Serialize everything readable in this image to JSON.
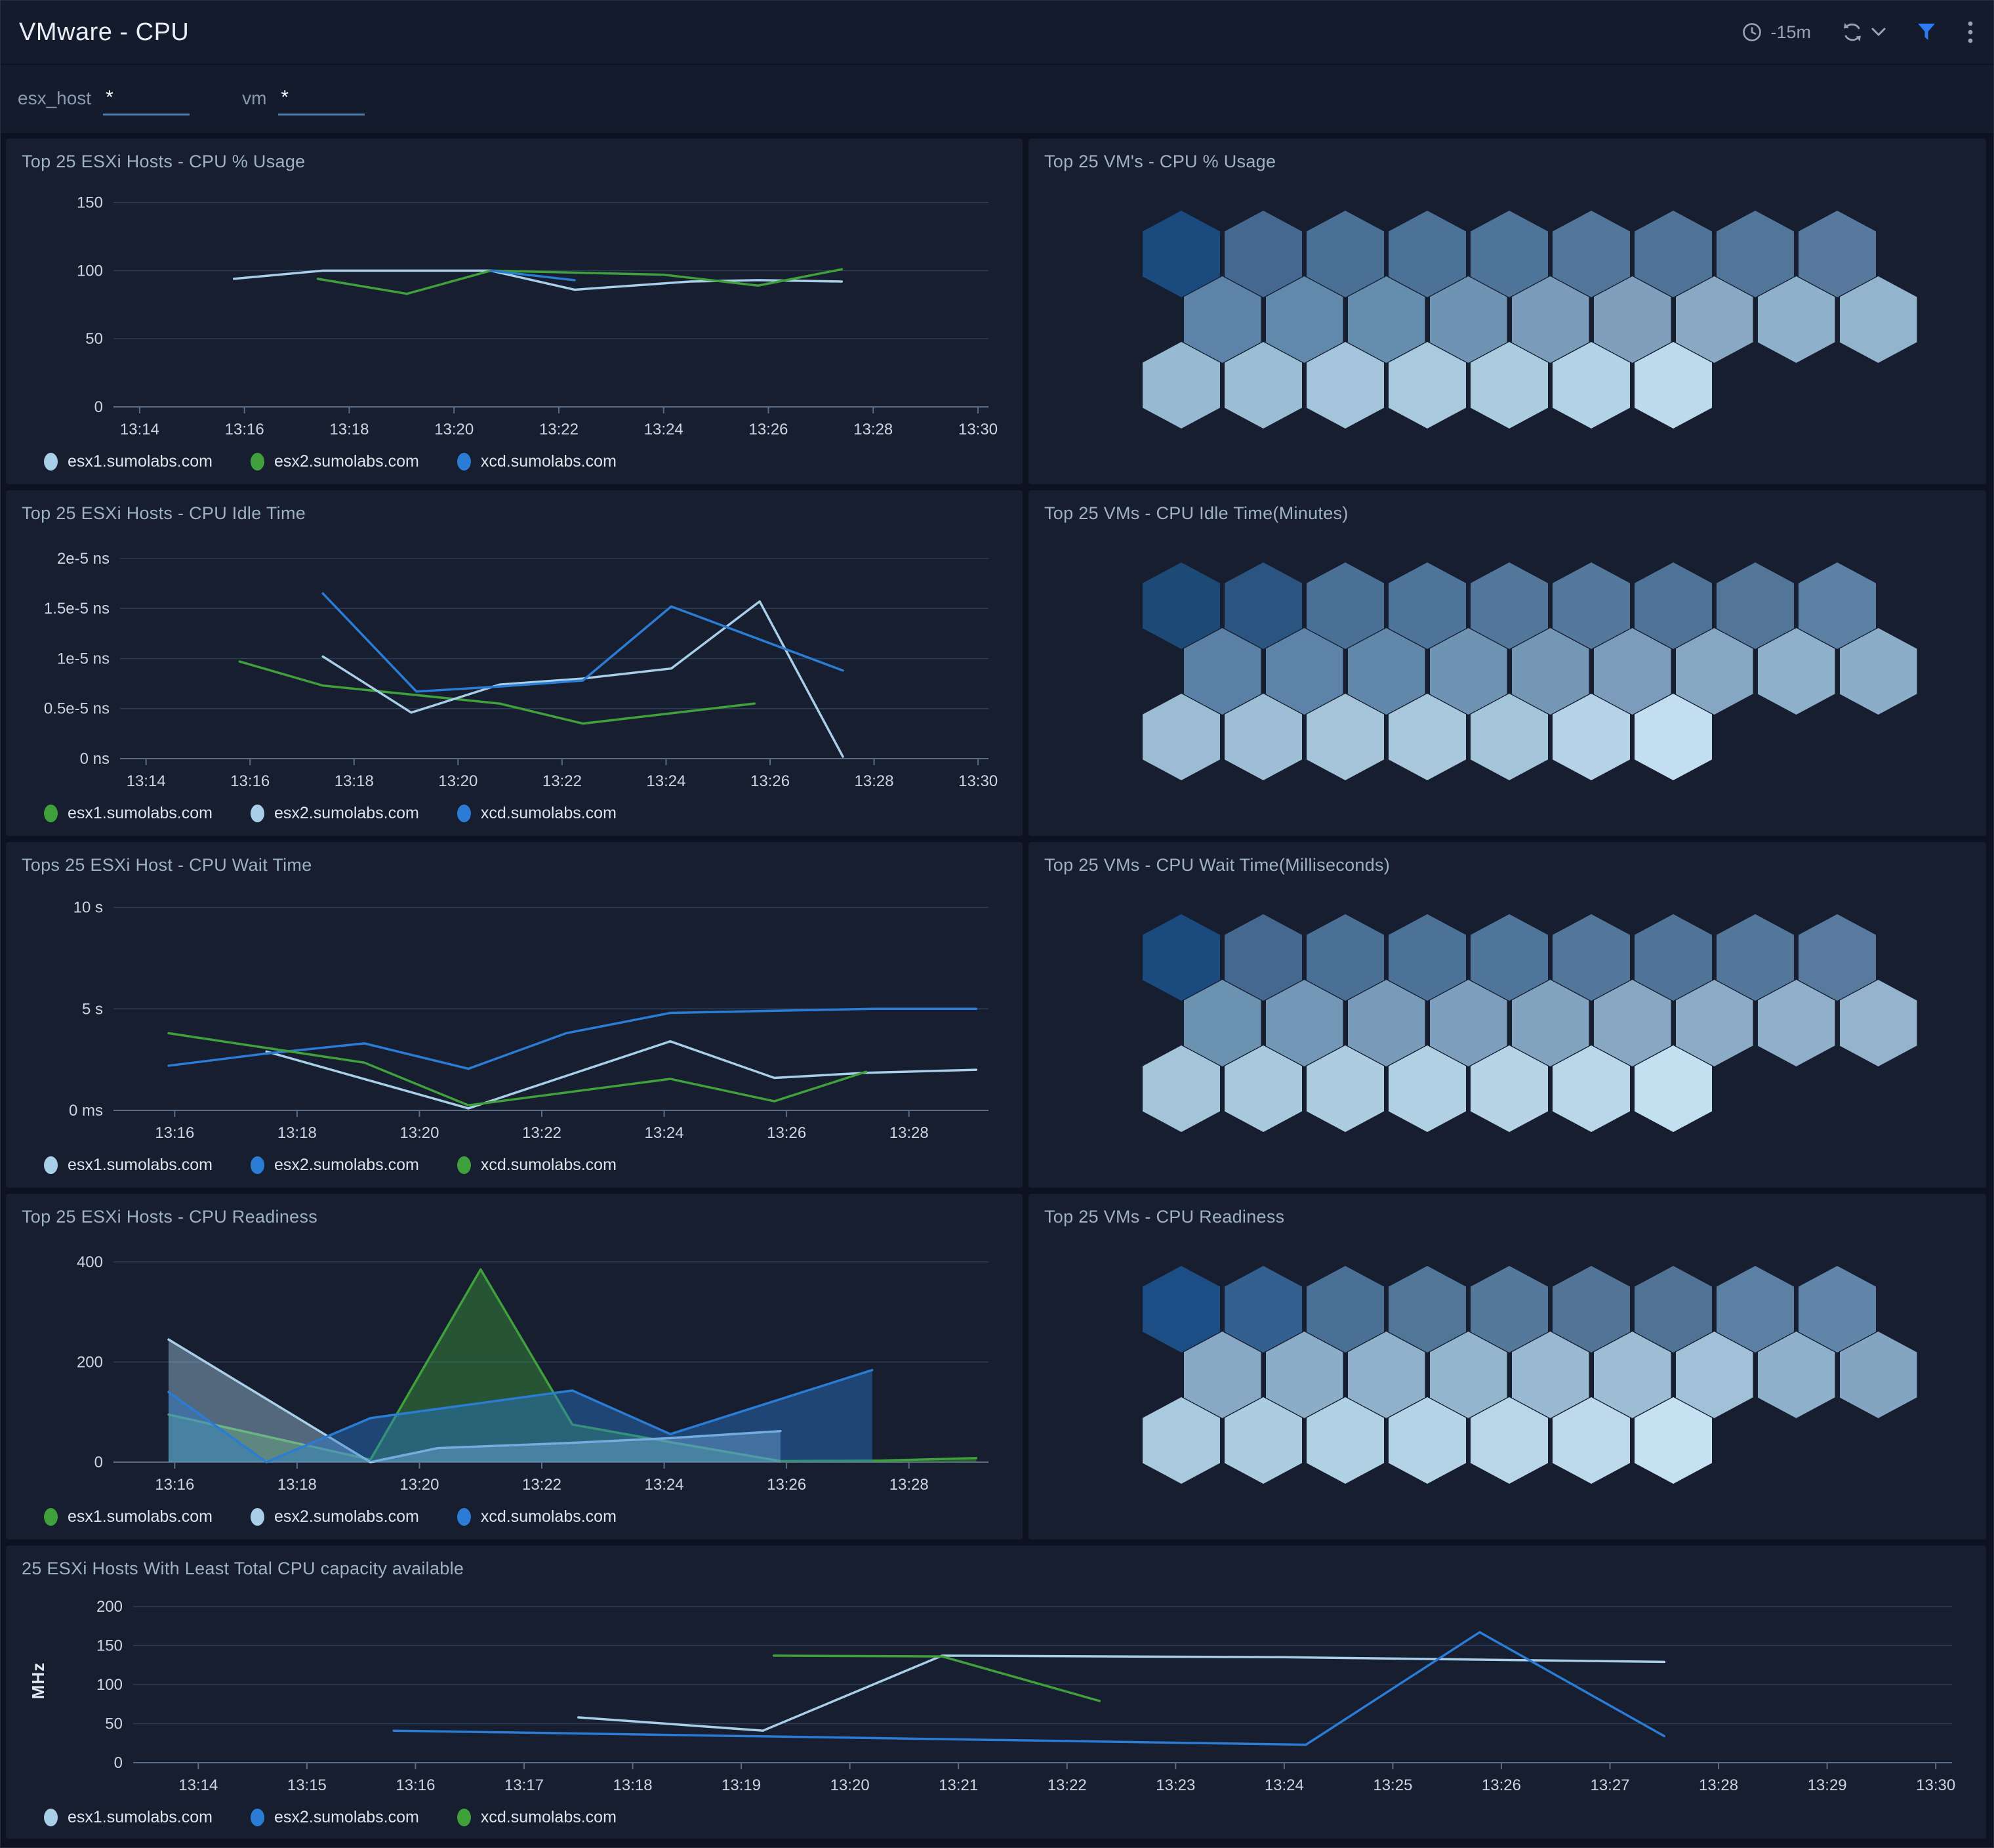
{
  "header": {
    "title": "VMware - CPU",
    "time_range": "-15m",
    "icons": [
      "clock-icon",
      "refresh-icon",
      "chevron-down-icon",
      "filter-icon",
      "kebab-menu-icon"
    ],
    "accent_color": "#2e7bf6"
  },
  "filters": {
    "esx_host": {
      "label": "esx_host",
      "value": "*"
    },
    "vm": {
      "label": "vm",
      "value": "*"
    }
  },
  "palette": {
    "light_blue": "#a9cfe8",
    "green": "#3fa03c",
    "blue": "#2a7cd4",
    "panel_bg": "#161e30",
    "grid_line": "#2e3d58",
    "axis_line": "#5a6b85"
  },
  "chart_data": [
    {
      "type": "line",
      "title": "Top 25 ESXi Hosts - CPU % Usage",
      "xlabel": "",
      "ylabel": "",
      "grid": true,
      "legend_position": "bottom",
      "x_domain": [
        13.5,
        30.2
      ],
      "y_top": 158,
      "margin_left": 140,
      "x_ticks": [
        [
          14,
          "13:14"
        ],
        [
          16,
          "13:16"
        ],
        [
          18,
          "13:18"
        ],
        [
          20,
          "13:20"
        ],
        [
          22,
          "13:22"
        ],
        [
          24,
          "13:24"
        ],
        [
          26,
          "13:26"
        ],
        [
          28,
          "13:28"
        ],
        [
          30,
          "13:30"
        ]
      ],
      "y_ticks": [
        [
          150,
          "150"
        ],
        [
          100,
          "100"
        ],
        [
          50,
          "50"
        ],
        [
          0,
          "0"
        ]
      ],
      "series": [
        {
          "name": "esx1.sumolabs.com",
          "color": "#a9cfe8",
          "points": [
            [
              15.8,
              94
            ],
            [
              17.5,
              100
            ],
            [
              20.7,
              100
            ],
            [
              22.3,
              86
            ],
            [
              24.5,
              92
            ],
            [
              25.8,
              93
            ],
            [
              27.4,
              92
            ]
          ]
        },
        {
          "name": "esx2.sumolabs.com",
          "color": "#3fa03c",
          "points": [
            [
              17.4,
              94
            ],
            [
              19.1,
              83
            ],
            [
              20.7,
              100
            ],
            [
              24.0,
              97
            ],
            [
              25.8,
              89
            ],
            [
              27.4,
              101
            ]
          ]
        },
        {
          "name": "xcd.sumolabs.com",
          "color": "#2a7cd4",
          "points": [
            [
              20.7,
              100
            ],
            [
              22.3,
              93
            ]
          ]
        }
      ]
    },
    {
      "type": "hexmap",
      "title": "Top 25 VM's - CPU % Usage",
      "rows": [
        9,
        9,
        7
      ],
      "colors": [
        "#1b4a7e",
        "#44688f",
        "#4a7096",
        "#4d7298",
        "#4f7499",
        "#51769a",
        "#4e7397",
        "#51769a",
        "#56799d",
        "#5d84a8",
        "#6089ab",
        "#648dae",
        "#6f94b3",
        "#7a9cba",
        "#7f9fbd",
        "#88a8c3",
        "#8fb0ca",
        "#93b4cd",
        "#97bad2",
        "#9cbed5",
        "#a3c4da",
        "#a8c9de",
        "#abccdf",
        "#b2d2e5",
        "#bdd9ec"
      ]
    },
    {
      "type": "line",
      "title": "Top 25 ESXi Hosts - CPU Idle Time",
      "xlabel": "",
      "ylabel": "",
      "grid": true,
      "legend_position": "bottom",
      "x_domain": [
        13.5,
        30.2
      ],
      "y_top": 2.15,
      "margin_left": 150,
      "x_ticks": [
        [
          14,
          "13:14"
        ],
        [
          16,
          "13:16"
        ],
        [
          18,
          "13:18"
        ],
        [
          20,
          "13:20"
        ],
        [
          22,
          "13:22"
        ],
        [
          24,
          "13:24"
        ],
        [
          26,
          "13:26"
        ],
        [
          28,
          "13:28"
        ],
        [
          30,
          "13:30"
        ]
      ],
      "y_ticks": [
        [
          2,
          "2e-5 ns"
        ],
        [
          1.5,
          "1.5e-5 ns"
        ],
        [
          1,
          "1e-5 ns"
        ],
        [
          0.5,
          "0.5e-5 ns"
        ],
        [
          0,
          "0 ns"
        ]
      ],
      "series": [
        {
          "name": "esx1.sumolabs.com",
          "color": "#3fa03c",
          "points": [
            [
              15.8,
              0.97
            ],
            [
              17.4,
              0.73
            ],
            [
              19.1,
              0.64
            ],
            [
              20.8,
              0.55
            ],
            [
              22.4,
              0.35
            ],
            [
              25.7,
              0.55
            ]
          ]
        },
        {
          "name": "esx2.sumolabs.com",
          "color": "#a9cfe8",
          "points": [
            [
              17.4,
              1.02
            ],
            [
              19.1,
              0.46
            ],
            [
              20.8,
              0.74
            ],
            [
              22.4,
              0.8
            ],
            [
              24.1,
              0.9
            ],
            [
              25.8,
              1.57
            ],
            [
              27.4,
              0.02
            ]
          ]
        },
        {
          "name": "xcd.sumolabs.com",
          "color": "#2a7cd4",
          "points": [
            [
              17.4,
              1.65
            ],
            [
              19.2,
              0.67
            ],
            [
              20.8,
              0.72
            ],
            [
              22.4,
              0.78
            ],
            [
              24.1,
              1.52
            ],
            [
              27.4,
              0.88
            ]
          ]
        }
      ]
    },
    {
      "type": "hexmap",
      "title": "Top 25 VMs - CPU Idle Time(Minutes)",
      "rows": [
        9,
        9,
        7
      ],
      "colors": [
        "#1d4976",
        "#2b5480",
        "#4a7096",
        "#4f7499",
        "#52779b",
        "#55799d",
        "#4f7397",
        "#527598",
        "#5d81a5",
        "#5a80a5",
        "#5d84a8",
        "#6188ab",
        "#6f93b3",
        "#7497b6",
        "#7b9cbb",
        "#86a7c3",
        "#8fb0ca",
        "#8badc8",
        "#9cbcd4",
        "#9ebed6",
        "#a5c4da",
        "#a9c8de",
        "#a4c4da",
        "#b5d2e6",
        "#c2def0"
      ]
    },
    {
      "type": "line",
      "title": "Tops 25 ESXi Host - CPU Wait Time",
      "xlabel": "",
      "ylabel": "",
      "grid": true,
      "legend_position": "bottom",
      "x_domain": [
        15,
        29.3
      ],
      "y_top": 10.6,
      "margin_left": 140,
      "x_ticks": [
        [
          16,
          "13:16"
        ],
        [
          18,
          "13:18"
        ],
        [
          20,
          "13:20"
        ],
        [
          22,
          "13:22"
        ],
        [
          24,
          "13:24"
        ],
        [
          26,
          "13:26"
        ],
        [
          28,
          "13:28"
        ]
      ],
      "y_ticks": [
        [
          10,
          "10 s"
        ],
        [
          5,
          "5 s"
        ],
        [
          0,
          "0 ms"
        ]
      ],
      "series": [
        {
          "name": "esx1.sumolabs.com",
          "color": "#a9cfe8",
          "points": [
            [
              17.5,
              2.9
            ],
            [
              20.8,
              0.1
            ],
            [
              24.1,
              3.4
            ],
            [
              25.8,
              1.6
            ],
            [
              27.3,
              1.85
            ],
            [
              29.1,
              2.0
            ]
          ]
        },
        {
          "name": "esx2.sumolabs.com",
          "color": "#2a7cd4",
          "points": [
            [
              15.9,
              2.2
            ],
            [
              17.5,
              2.8
            ],
            [
              19.1,
              3.3
            ],
            [
              20.8,
              2.05
            ],
            [
              22.4,
              3.8
            ],
            [
              24.1,
              4.8
            ],
            [
              27.4,
              5.0
            ],
            [
              29.1,
              5.0
            ]
          ]
        },
        {
          "name": "xcd.sumolabs.com",
          "color": "#3fa03c",
          "points": [
            [
              15.9,
              3.8
            ],
            [
              19.1,
              2.35
            ],
            [
              20.8,
              0.25
            ],
            [
              24.1,
              1.55
            ],
            [
              25.8,
              0.45
            ],
            [
              27.3,
              1.9
            ]
          ]
        }
      ]
    },
    {
      "type": "hexmap",
      "title": "Top 25 VMs -  CPU Wait Time(Milliseconds)",
      "rows": [
        9,
        9,
        7
      ],
      "colors": [
        "#1b4a7e",
        "#44688f",
        "#4a7096",
        "#4d7298",
        "#50759a",
        "#52779b",
        "#4f7498",
        "#53779b",
        "#577a9e",
        "#6c92b2",
        "#7398b7",
        "#789bba",
        "#7d9fbd",
        "#82a3c0",
        "#87a7c3",
        "#8cabc7",
        "#90afca",
        "#95b3cd",
        "#a4c4da",
        "#a8c8dd",
        "#adcce0",
        "#b1d0e3",
        "#b6d4e6",
        "#bad7e9",
        "#c3e0f1"
      ]
    },
    {
      "type": "area",
      "title": "Top 25 ESXi Hosts - CPU Readiness",
      "xlabel": "",
      "ylabel": "",
      "grid": true,
      "legend_position": "bottom",
      "x_domain": [
        15,
        29.3
      ],
      "y_top": 430,
      "margin_left": 140,
      "x_ticks": [
        [
          16,
          "13:16"
        ],
        [
          18,
          "13:18"
        ],
        [
          20,
          "13:20"
        ],
        [
          22,
          "13:22"
        ],
        [
          24,
          "13:24"
        ],
        [
          26,
          "13:26"
        ],
        [
          28,
          "13:28"
        ]
      ],
      "y_ticks": [
        [
          400,
          "400"
        ],
        [
          200,
          "200"
        ],
        [
          0,
          "0"
        ]
      ],
      "series": [
        {
          "name": "esx1.sumolabs.com",
          "color": "#3fa03c",
          "fill": true,
          "points": [
            [
              15.9,
              95
            ],
            [
              19.2,
              5
            ],
            [
              21.0,
              385
            ],
            [
              22.5,
              75
            ],
            [
              24.1,
              40
            ],
            [
              25.9,
              2
            ],
            [
              27.5,
              3
            ],
            [
              29.1,
              8
            ]
          ]
        },
        {
          "name": "esx2.sumolabs.com",
          "color": "#a9cfe8",
          "fill": true,
          "points": [
            [
              15.9,
              245
            ],
            [
              19.2,
              0
            ],
            [
              20.3,
              28
            ],
            [
              22.4,
              38
            ],
            [
              24.1,
              48
            ],
            [
              25.9,
              62
            ]
          ]
        },
        {
          "name": "xcd.sumolabs.com",
          "color": "#2a7cd4",
          "fill": true,
          "points": [
            [
              15.9,
              140
            ],
            [
              17.5,
              0
            ],
            [
              19.2,
              88
            ],
            [
              22.5,
              143
            ],
            [
              24.1,
              56
            ],
            [
              27.4,
              184
            ]
          ]
        }
      ]
    },
    {
      "type": "hexmap",
      "title": "Top 25 VMs - CPU Readiness",
      "rows": [
        9,
        9,
        7
      ],
      "colors": [
        "#1c4d85",
        "#33608f",
        "#4a7096",
        "#527698",
        "#55799b",
        "#527597",
        "#4f7295",
        "#5c80a3",
        "#6186a9",
        "#88a9c5",
        "#8cadc8",
        "#90b1cb",
        "#94b5ce",
        "#98b9d1",
        "#9cbdd4",
        "#a0c1d7",
        "#8fb0ca",
        "#84a5c1",
        "#a8c9de",
        "#accce0",
        "#b0d0e3",
        "#b4d3e6",
        "#b8d6e8",
        "#bdd9eb",
        "#c6e2f2"
      ]
    },
    {
      "type": "line",
      "title": "25 ESXi Hosts With Least Total CPU capacity available",
      "xlabel": "",
      "ylabel": "MHz",
      "grid": true,
      "legend_position": "bottom",
      "x_domain": [
        13.4,
        30.15
      ],
      "y_top": 210,
      "margin_left": 170,
      "x_ticks": [
        [
          14,
          "13:14"
        ],
        [
          15,
          "13:15"
        ],
        [
          16,
          "13:16"
        ],
        [
          17,
          "13:17"
        ],
        [
          18,
          "13:18"
        ],
        [
          19,
          "13:19"
        ],
        [
          20,
          "13:20"
        ],
        [
          21,
          "13:21"
        ],
        [
          22,
          "13:22"
        ],
        [
          23,
          "13:23"
        ],
        [
          24,
          "13:24"
        ],
        [
          25,
          "13:25"
        ],
        [
          26,
          "13:26"
        ],
        [
          27,
          "13:27"
        ],
        [
          28,
          "13:28"
        ],
        [
          29,
          "13:29"
        ],
        [
          30,
          "13:30"
        ]
      ],
      "y_ticks": [
        [
          200,
          "200"
        ],
        [
          150,
          "150"
        ],
        [
          100,
          "100"
        ],
        [
          50,
          "50"
        ],
        [
          0,
          "0"
        ]
      ],
      "series": [
        {
          "name": "esx1.sumolabs.com",
          "color": "#a9cfe8",
          "points": [
            [
              17.5,
              58
            ],
            [
              19.2,
              41
            ],
            [
              20.85,
              137
            ],
            [
              24.0,
              135
            ],
            [
              27.5,
              129
            ]
          ]
        },
        {
          "name": "esx2.sumolabs.com",
          "color": "#2a7cd4",
          "points": [
            [
              15.8,
              41
            ],
            [
              20.0,
              32
            ],
            [
              24.2,
              23
            ],
            [
              25.8,
              167
            ],
            [
              27.5,
              34
            ]
          ]
        },
        {
          "name": "xcd.sumolabs.com",
          "color": "#3fa03c",
          "points": [
            [
              19.3,
              137
            ],
            [
              20.85,
              136
            ],
            [
              22.3,
              79
            ]
          ]
        }
      ]
    }
  ]
}
